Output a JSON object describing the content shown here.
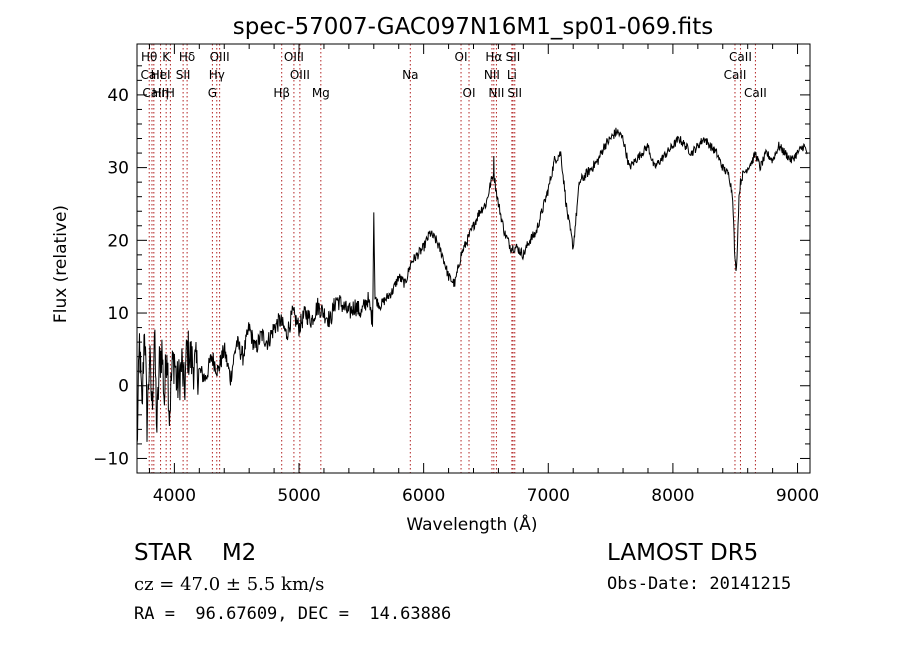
{
  "chart_data": {
    "type": "line",
    "title": "spec-57007-GAC097N16M1_sp01-069.fits",
    "xlabel": "Wavelength (Å)",
    "ylabel": "Flux (relative)",
    "xlim": [
      3700,
      9100
    ],
    "ylim": [
      -12,
      47
    ],
    "xticks": [
      4000,
      5000,
      6000,
      7000,
      8000,
      9000
    ],
    "yticks": [
      -10,
      0,
      10,
      20,
      30,
      40
    ],
    "grid": false,
    "line_color": "#000000",
    "marker_color": "#b22222",
    "spectrum": {
      "x": [
        3700,
        3720,
        3740,
        3760,
        3780,
        3800,
        3820,
        3840,
        3860,
        3880,
        3900,
        3920,
        3940,
        3960,
        3980,
        4000,
        4020,
        4040,
        4060,
        4080,
        4100,
        4150,
        4200,
        4250,
        4300,
        4350,
        4400,
        4450,
        4500,
        4550,
        4600,
        4650,
        4700,
        4750,
        4800,
        4850,
        4900,
        4950,
        5000,
        5050,
        5100,
        5150,
        5200,
        5250,
        5300,
        5350,
        5400,
        5450,
        5500,
        5550,
        5590,
        5600,
        5610,
        5650,
        5700,
        5750,
        5800,
        5850,
        5900,
        5950,
        6000,
        6050,
        6100,
        6150,
        6200,
        6250,
        6300,
        6350,
        6400,
        6450,
        6500,
        6540,
        6560,
        6563,
        6566,
        6580,
        6600,
        6650,
        6700,
        6750,
        6800,
        6850,
        6900,
        6950,
        7000,
        7050,
        7100,
        7150,
        7200,
        7250,
        7300,
        7350,
        7400,
        7450,
        7500,
        7550,
        7600,
        7650,
        7700,
        7750,
        7800,
        7850,
        7900,
        7950,
        8000,
        8050,
        8100,
        8150,
        8200,
        8250,
        8300,
        8350,
        8400,
        8450,
        8480,
        8498,
        8510,
        8530,
        8542,
        8560,
        8600,
        8640,
        8662,
        8680,
        8700,
        8750,
        8800,
        8850,
        8900,
        8950,
        9000,
        9050,
        9080
      ],
      "y": [
        -9,
        6,
        -4,
        9,
        -5,
        4,
        -3,
        7,
        -6,
        3,
        5,
        -2,
        6,
        -4,
        2,
        4,
        0,
        1,
        3,
        -1,
        5,
        3,
        2,
        1,
        4,
        2,
        5,
        1,
        6,
        4,
        8,
        5,
        7,
        6,
        8,
        9,
        7,
        10,
        8,
        10,
        9,
        11,
        10,
        9,
        12,
        11,
        10,
        11,
        10,
        12,
        9,
        24,
        12,
        11,
        12,
        13,
        15,
        14,
        17,
        18,
        19,
        21,
        20,
        18,
        15,
        14,
        18,
        20,
        22,
        24,
        25,
        28,
        29,
        31,
        29,
        27,
        25,
        21,
        19,
        19,
        18,
        20,
        21,
        24,
        27,
        31,
        32,
        24,
        19,
        28,
        29,
        30,
        31,
        33,
        34,
        35,
        34,
        30,
        31,
        32,
        33,
        30,
        31,
        32,
        33,
        34,
        33,
        32,
        33,
        34,
        33,
        32,
        30,
        29,
        26,
        17,
        16,
        26,
        28,
        29,
        30,
        31,
        32,
        31,
        30,
        32,
        31,
        33,
        32,
        31,
        32,
        33,
        32
      ]
    },
    "annotations": [
      {
        "label": "Hθ",
        "wavelength": 3798,
        "row": 0
      },
      {
        "label": "CaII",
        "wavelength": 3820,
        "row": 1
      },
      {
        "label": "CaII",
        "wavelength": 3835,
        "row": 2
      },
      {
        "label": "Hη",
        "wavelength": 3889,
        "row": 2
      },
      {
        "label": "HeI",
        "wavelength": 3889,
        "row": 1
      },
      {
        "label": "K",
        "wavelength": 3934,
        "row": 0
      },
      {
        "label": "H",
        "wavelength": 3968,
        "row": 2
      },
      {
        "label": "Hδ",
        "wavelength": 4102,
        "row": 0
      },
      {
        "label": "SII",
        "wavelength": 4070,
        "row": 1
      },
      {
        "label": "OIII",
        "wavelength": 4363,
        "row": 0
      },
      {
        "label": "Hγ",
        "wavelength": 4340,
        "row": 1
      },
      {
        "label": "G",
        "wavelength": 4305,
        "row": 2
      },
      {
        "label": "Hβ",
        "wavelength": 4861,
        "row": 2
      },
      {
        "label": "OIII",
        "wavelength": 4959,
        "row": 0
      },
      {
        "label": "OIII",
        "wavelength": 5007,
        "row": 1
      },
      {
        "label": "Mg",
        "wavelength": 5175,
        "row": 2
      },
      {
        "label": "Na",
        "wavelength": 5893,
        "row": 1
      },
      {
        "label": "OI",
        "wavelength": 6300,
        "row": 0
      },
      {
        "label": "OI",
        "wavelength": 6364,
        "row": 2
      },
      {
        "label": "Hα",
        "wavelength": 6563,
        "row": 0
      },
      {
        "label": "NII",
        "wavelength": 6548,
        "row": 1
      },
      {
        "label": "NII",
        "wavelength": 6584,
        "row": 2
      },
      {
        "label": "SII",
        "wavelength": 6717,
        "row": 0
      },
      {
        "label": "Li",
        "wavelength": 6708,
        "row": 1
      },
      {
        "label": "SII",
        "wavelength": 6731,
        "row": 2
      },
      {
        "label": "CaII",
        "wavelength": 8542,
        "row": 0
      },
      {
        "label": "CaII",
        "wavelength": 8498,
        "row": 1
      },
      {
        "label": "CaII",
        "wavelength": 8662,
        "row": 2
      }
    ]
  },
  "info": {
    "class_line": "STAR    M2",
    "survey": "LAMOST DR5",
    "cz": "cz = 47.0 ± 5.5 km/s",
    "obs_date": "Obs-Date: 20141215",
    "coords": "RA =  96.67609, DEC =  14.63886"
  }
}
